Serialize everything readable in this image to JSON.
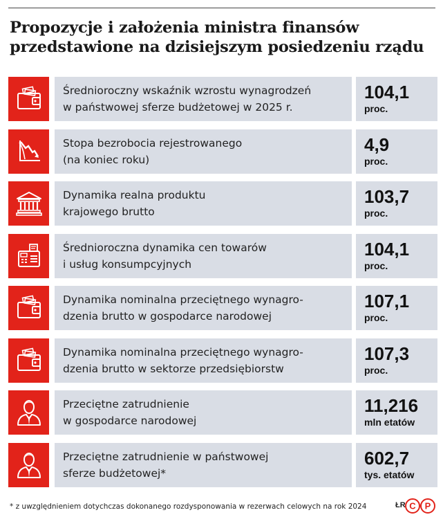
{
  "title": {
    "line1": "Propozycje i założenia ministra finansów",
    "line2": "przedstawione na dzisiejszym posiedzeniu rządu"
  },
  "chart_data": {
    "type": "table",
    "title": "Propozycje i założenia ministra finansów przedstawione na dzisiejszym posiedzeniu rządu",
    "rows": [
      {
        "icon": "wallet-icon",
        "label1": "Średnioroczny wskaźnik wzrostu wynagrodzeń",
        "label2": "w państwowej sferze budżetowej w 2025 r.",
        "value": "104,1",
        "unit": "proc."
      },
      {
        "icon": "falling-chart-icon",
        "label1": "Stopa bezrobocia rejestrowanego",
        "label2": "(na koniec roku)",
        "value": "4,9",
        "unit": "proc."
      },
      {
        "icon": "bank-icon",
        "label1": "Dynamika realna produktu",
        "label2": "krajowego brutto",
        "value": "103,7",
        "unit": "proc."
      },
      {
        "icon": "cash-register-icon",
        "label1": "Średnioroczna dynamika cen towarów",
        "label2": "i usług konsumpcyjnych",
        "value": "104,1",
        "unit": "proc."
      },
      {
        "icon": "wallet-icon",
        "label1": "Dynamika nominalna przeciętnego wynagro-",
        "label2": "dzenia brutto w gospodarce narodowej",
        "value": "107,1",
        "unit": "proc."
      },
      {
        "icon": "wallet-icon",
        "label1": "Dynamika nominalna przeciętnego wynagro-",
        "label2": "dzenia brutto w sektorze przedsiębiorstw",
        "value": "107,3",
        "unit": "proc."
      },
      {
        "icon": "worker-icon",
        "label1": "Przeciętne zatrudnienie",
        "label2": "w gospodarce narodowej",
        "value": "11,216",
        "unit": "mln etatów"
      },
      {
        "icon": "worker-icon",
        "label1": "Przeciętne zatrudnienie w państwowej",
        "label2": "sferze budżetowej*",
        "value": "602,7",
        "unit": "tys. etatów"
      }
    ]
  },
  "footnote": "* z uwzględnieniem dotychczas dokonanego rozdysponowania w rezerwach celowych na rok 2024",
  "credit": "ŁR",
  "logo_text": "CP",
  "colors": {
    "accent": "#e2231a",
    "panel": "#d9dde5",
    "text": "#222222"
  }
}
